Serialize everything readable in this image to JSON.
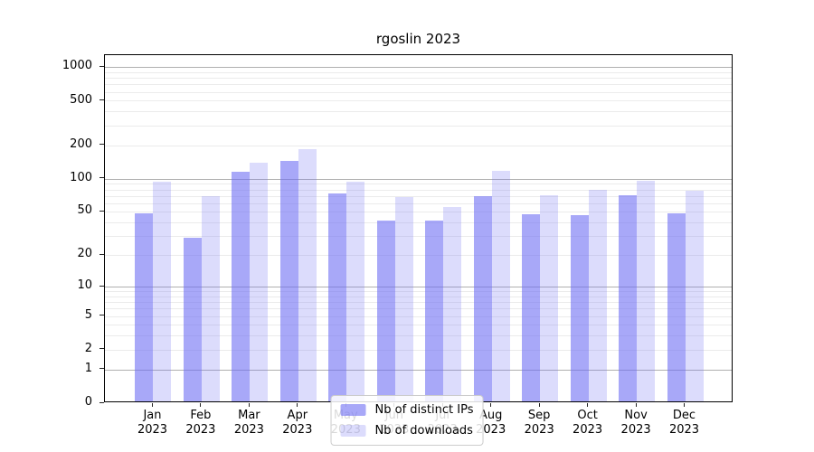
{
  "chart_data": {
    "type": "bar",
    "title": "rgoslin 2023",
    "yscale": "log10(v+1)",
    "ylim": [
      0,
      1000
    ],
    "grid": true,
    "legend_position": "lower center",
    "categories_months": [
      "Jan",
      "Feb",
      "Mar",
      "Apr",
      "May",
      "Jun",
      "Jul",
      "Aug",
      "Sep",
      "Oct",
      "Nov",
      "Dec"
    ],
    "year_label": "2023",
    "series": [
      {
        "name": "Nb of distinct IPs",
        "color": "rgba(110,110,243,0.60)",
        "values": [
          47,
          28,
          112,
          139,
          71,
          40,
          40,
          67,
          46,
          45,
          68,
          47
        ]
      },
      {
        "name": "Nb of downloads",
        "color": "rgba(110,110,243,0.24)",
        "values": [
          90,
          67,
          135,
          178,
          90,
          66,
          53,
          113,
          68,
          76,
          92,
          75
        ]
      }
    ],
    "ytick_values": [
      0,
      1,
      2,
      5,
      10,
      20,
      50,
      100,
      200,
      500,
      1000
    ],
    "ytick_labels": [
      "0",
      "1",
      "2",
      "5",
      "10",
      "20",
      "50",
      "100",
      "200",
      "500",
      "1000"
    ],
    "major_gridline_values": [
      1,
      10,
      100,
      1000
    ]
  }
}
